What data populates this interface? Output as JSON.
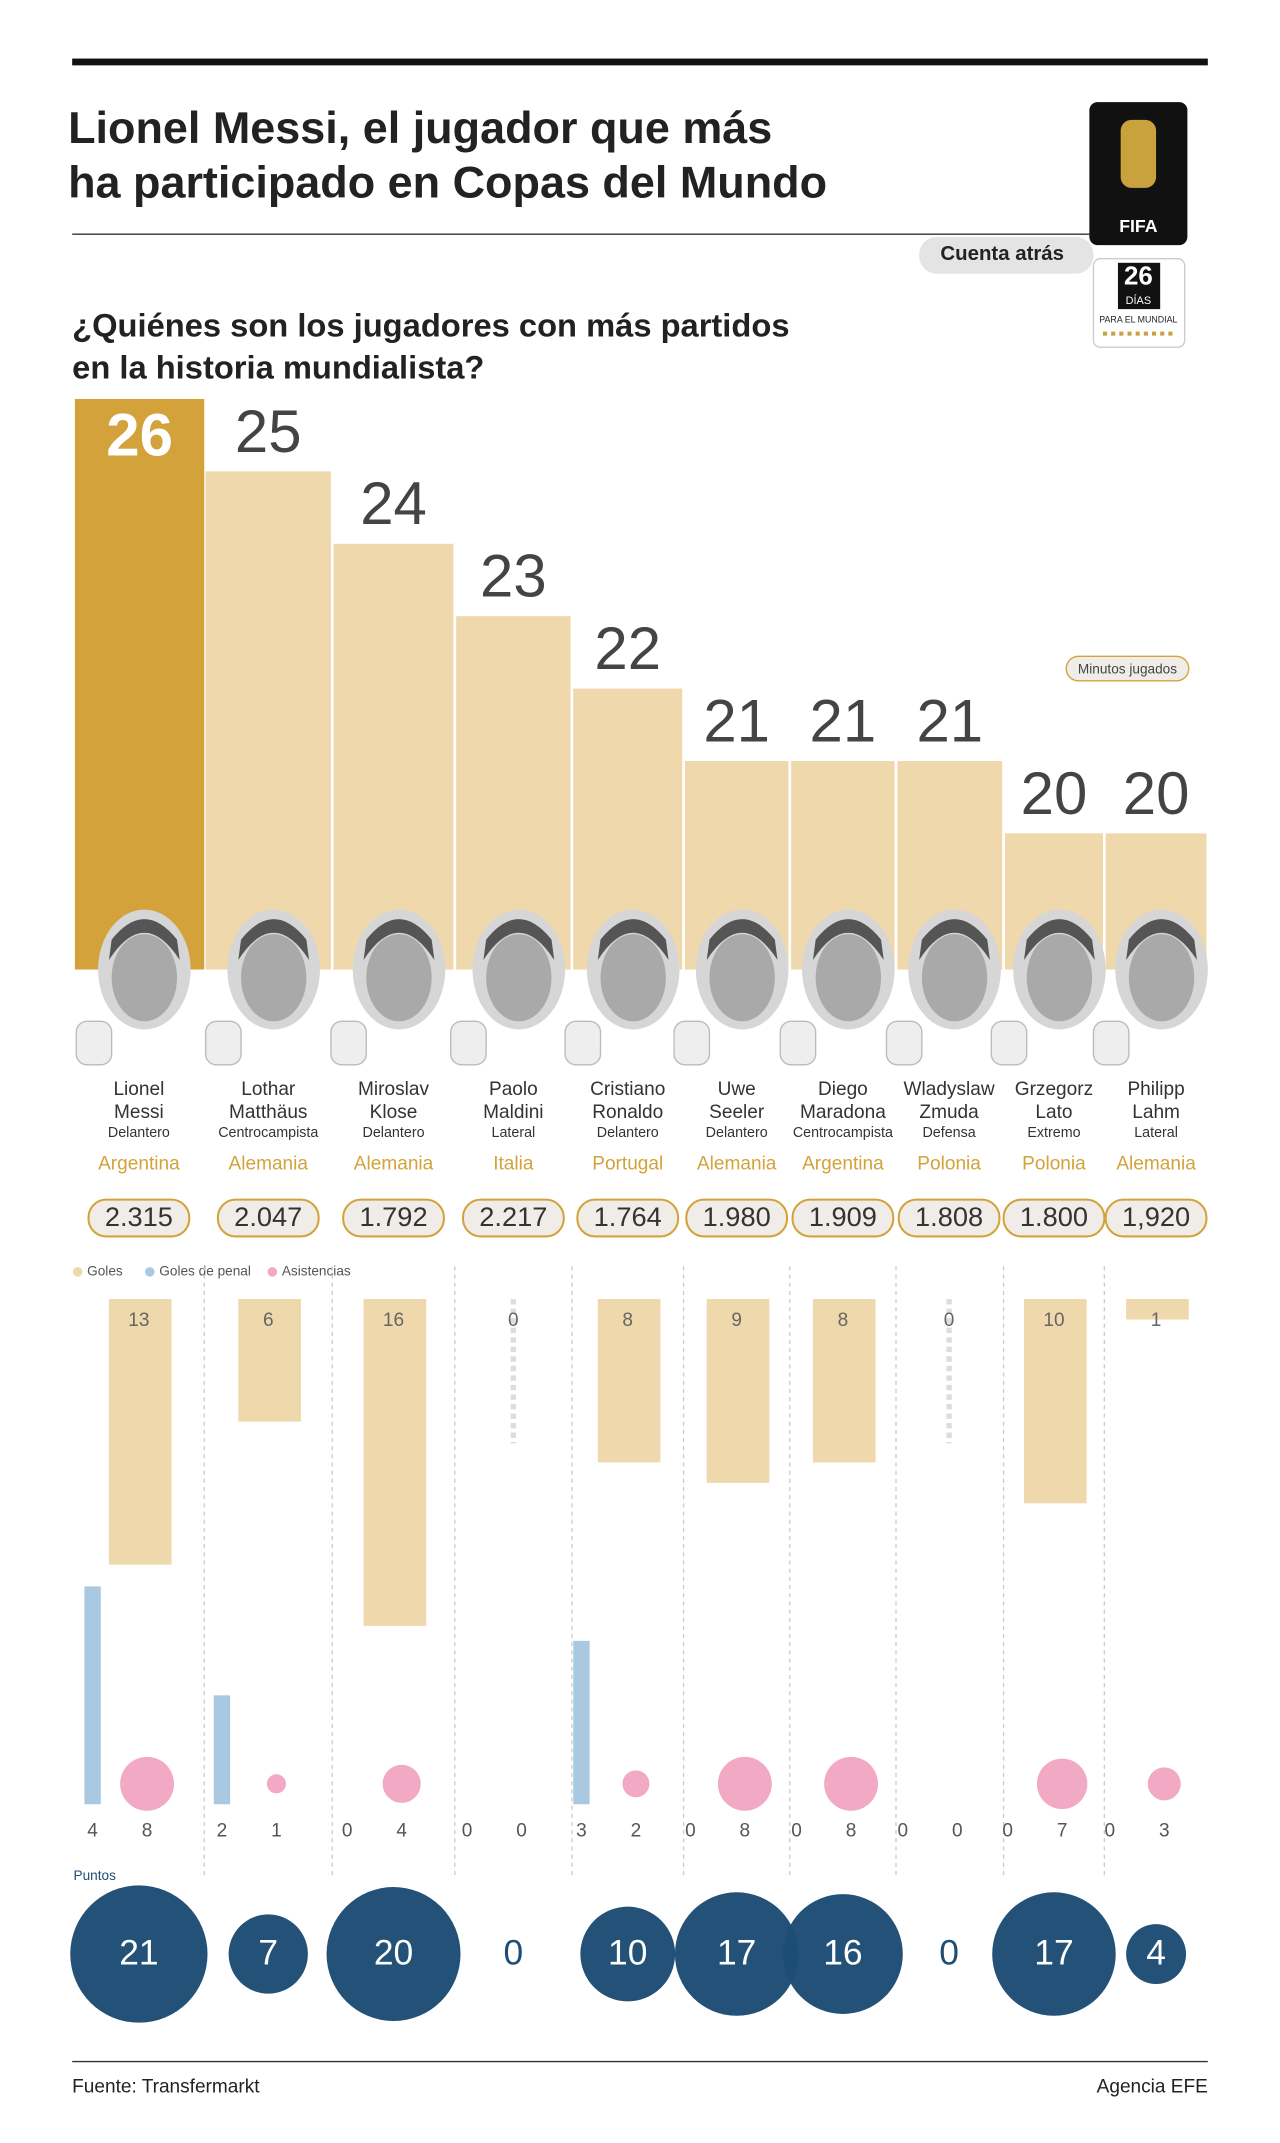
{
  "header": {
    "logo": "FIFA",
    "countdown": "Cuenta atrás",
    "days": "26",
    "days_label": "DÍAS",
    "days_sub": "PARA EL MUNDIAL"
  },
  "chart_data": {
    "type": "bar",
    "title": "Lionel Messi, el jugador que más\nha participado en Copas del Mundo",
    "subtitle": "¿Quiénes son los jugadores con más partidos\nen la historia mundialista?",
    "categories": [
      "Lionel\nMessi",
      "Lothar\nMatthäus",
      "Miroslav\nKlose",
      "Paolo\nMaldini",
      "Cristiano\nRonaldo",
      "Uwe\nSeeler",
      "Diego\nMaradona",
      "Wladyslaw\nZmuda",
      "Grzegorz\nLato",
      "Philipp\nLahm"
    ],
    "positions": [
      "Delantero",
      "Centrocampista",
      "Delantero",
      "Lateral",
      "Delantero",
      "Delantero",
      "Centrocampista",
      "Defensa",
      "Extremo",
      "Lateral"
    ],
    "countries": [
      "Argentina",
      "Alemania",
      "Alemania",
      "Italia",
      "Portugal",
      "Alemania",
      "Argentina",
      "Polonia",
      "Polonia",
      "Alemania"
    ],
    "values": [
      26,
      25,
      24,
      23,
      22,
      21,
      21,
      21,
      20,
      20
    ],
    "colors": [
      "#d4a23a",
      "#efd8ab",
      "#efd8ab",
      "#efd8ab",
      "#efd8ab",
      "#efd8ab",
      "#efd8ab",
      "#efd8ab",
      "#efd8ab",
      "#efd8ab"
    ],
    "minutes": {
      "label": "Minutos jugados",
      "values": [
        2315,
        2047,
        1792,
        2217,
        1764,
        1980,
        1909,
        1808,
        1800,
        1920
      ],
      "value_labels": [
        "2.315",
        "2.047",
        "1.792",
        "2.217",
        "1.764",
        "1.980",
        "1.909",
        "1.808",
        "1.800",
        "1,920"
      ]
    },
    "series": [
      {
        "name": "Goles",
        "color": "#efd8ab",
        "values": [
          13,
          6,
          16,
          0,
          8,
          9,
          8,
          0,
          10,
          1
        ]
      },
      {
        "name": "Goles de penal",
        "color": "#a9c8e2",
        "values": [
          4,
          2,
          0,
          0,
          3,
          0,
          0,
          0,
          0,
          0
        ]
      },
      {
        "name": "Asistencias",
        "color": "#f1a9c4",
        "values": [
          8,
          1,
          4,
          0,
          2,
          8,
          8,
          0,
          7,
          3
        ]
      }
    ],
    "points": {
      "label": "Puntos",
      "color": "#1f4e74",
      "values": [
        21,
        7,
        20,
        0,
        10,
        17,
        16,
        0,
        17,
        4
      ]
    }
  },
  "footer": {
    "source": "Fuente: Transfermarkt",
    "credit": "Agencia EFE"
  }
}
